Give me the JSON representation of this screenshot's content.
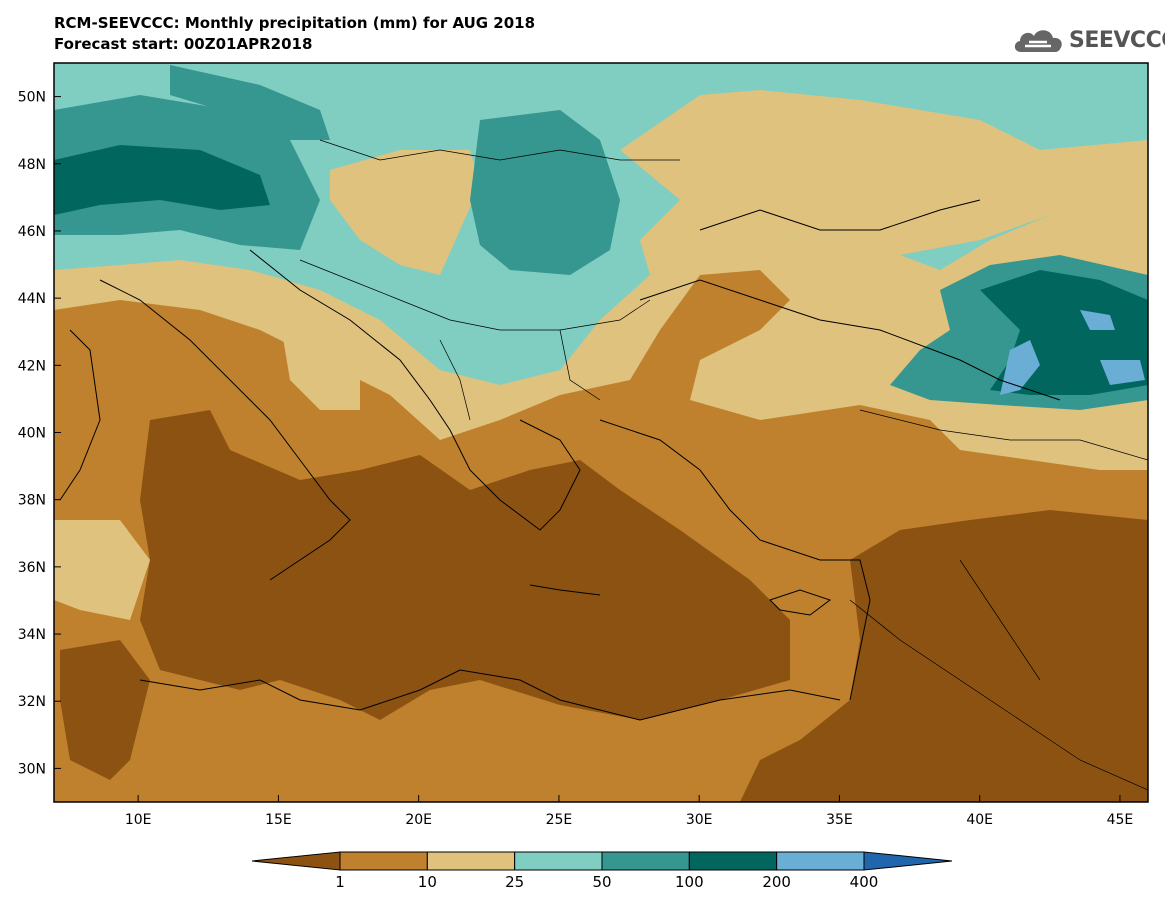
{
  "title": {
    "line1": "RCM-SEEVCCC: Monthly precipitation (mm) for AUG 2018",
    "line2": "Forecast start: 00Z01APR2018"
  },
  "logo": {
    "text": "SEEVCCC",
    "icon": "cloud-icon"
  },
  "map": {
    "region": "Southeast Europe, Mediterranean and Middle East",
    "lon_range": [
      7,
      46
    ],
    "lat_range": [
      29,
      51
    ],
    "lon_ticks": [
      "10E",
      "15E",
      "20E",
      "25E",
      "30E",
      "35E",
      "40E",
      "45E"
    ],
    "lat_ticks": [
      "30N",
      "32N",
      "34N",
      "36N",
      "38N",
      "40N",
      "42N",
      "44N",
      "46N",
      "48N",
      "50N"
    ]
  },
  "colorbar": {
    "levels": [
      "1",
      "10",
      "25",
      "50",
      "100",
      "200",
      "400"
    ],
    "colors": [
      "#8c5212",
      "#bf812d",
      "#dfc27d",
      "#80cdc1",
      "#35978f",
      "#01665e",
      "#6aaed6",
      "#2166ac"
    ]
  }
}
